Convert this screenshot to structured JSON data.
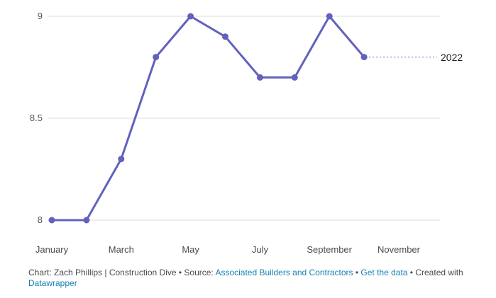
{
  "chart_data": {
    "type": "line",
    "x": [
      "January",
      "February",
      "March",
      "April",
      "May",
      "June",
      "July",
      "August",
      "September",
      "October"
    ],
    "series": [
      {
        "name": "2022",
        "values": [
          8,
          8,
          8.3,
          8.8,
          9,
          8.9,
          8.7,
          8.7,
          9,
          8.8
        ]
      }
    ],
    "title": "",
    "xlabel": "",
    "ylabel": "",
    "ylim": [
      8,
      9
    ],
    "y_ticks": [
      "8",
      "8.5",
      "9"
    ],
    "x_tick_labels": [
      "January",
      "March",
      "May",
      "July",
      "September",
      "November"
    ],
    "x_domain_months": 12,
    "grid": "horizontal",
    "legend_position": "end-of-line-label",
    "colors": {
      "line": "#6261be",
      "connector": "#8583c7",
      "grid": "#dedede",
      "tick_text": "#575757",
      "annotation_text": "#222222"
    }
  },
  "footer": {
    "attribution": "Chart: Zach Phillips | Construction Dive • Source: ",
    "source_link": "Associated Builders and Contractors",
    "sep": " • ",
    "data_link": "Get the data",
    "sep2": " • ",
    "created_with": "Created with ",
    "brand_link": "Datawrapper",
    "link_color": "#1681b2"
  }
}
